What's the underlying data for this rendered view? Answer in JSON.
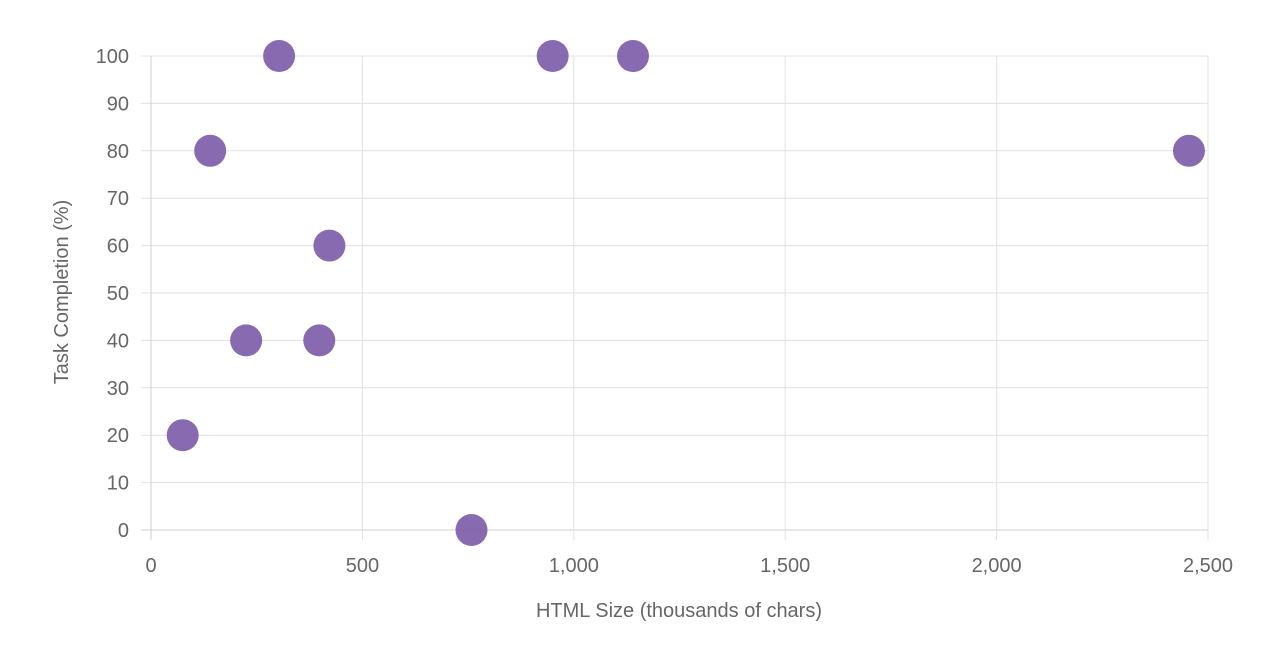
{
  "chart_data": {
    "type": "scatter",
    "xlabel": "HTML Size (thousands of chars)",
    "ylabel": "Task Completion (%)",
    "xlim": [
      0,
      2500
    ],
    "ylim": [
      0,
      100
    ],
    "x_ticks": [
      0,
      500,
      1000,
      1500,
      2000,
      2500
    ],
    "x_tick_labels": [
      "0",
      "500",
      "1,000",
      "1,500",
      "2,000",
      "2,500"
    ],
    "y_ticks": [
      0,
      10,
      20,
      30,
      40,
      50,
      60,
      70,
      80,
      90,
      100
    ],
    "y_tick_labels": [
      "0",
      "10",
      "20",
      "30",
      "40",
      "50",
      "60",
      "70",
      "80",
      "90",
      "100"
    ],
    "grid": true,
    "color": "#7b5aa8",
    "points": [
      {
        "x": 75,
        "y": 20
      },
      {
        "x": 140,
        "y": 80
      },
      {
        "x": 225,
        "y": 40
      },
      {
        "x": 303,
        "y": 100
      },
      {
        "x": 398,
        "y": 40
      },
      {
        "x": 422,
        "y": 60
      },
      {
        "x": 758,
        "y": 0
      },
      {
        "x": 950,
        "y": 100
      },
      {
        "x": 1140,
        "y": 100
      },
      {
        "x": 2455,
        "y": 80
      }
    ]
  }
}
